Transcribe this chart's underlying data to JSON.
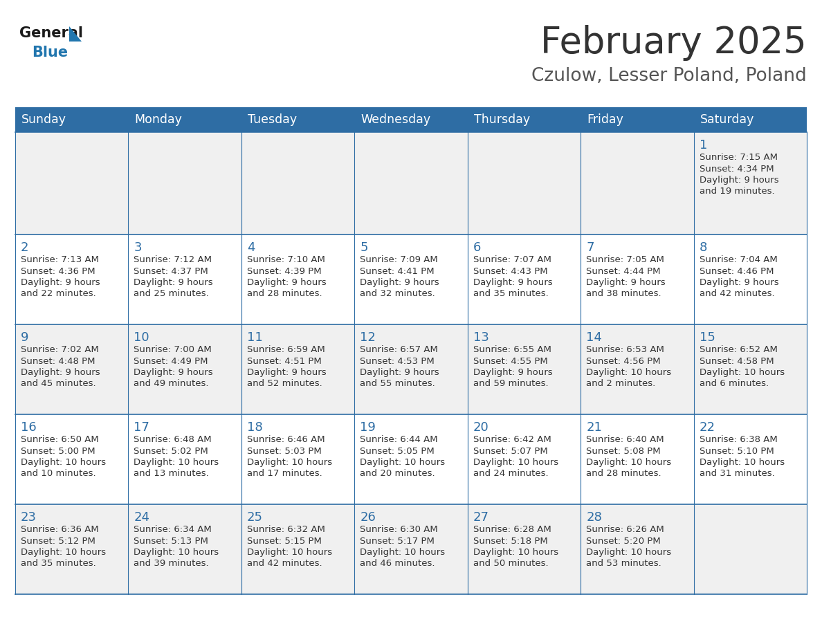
{
  "title": "February 2025",
  "subtitle": "Czulow, Lesser Poland, Poland",
  "days_of_week": [
    "Sunday",
    "Monday",
    "Tuesday",
    "Wednesday",
    "Thursday",
    "Friday",
    "Saturday"
  ],
  "header_bg": "#2E6DA4",
  "header_text": "#FFFFFF",
  "bg_color": "#FFFFFF",
  "row_alt_color": "#F0F0F0",
  "border_color": "#2E6DA4",
  "day_number_color": "#2E6DA4",
  "info_text_color": "#333333",
  "title_color": "#333333",
  "subtitle_color": "#555555",
  "calendar": [
    [
      null,
      null,
      null,
      null,
      null,
      null,
      {
        "day": 1,
        "sunrise": "7:15 AM",
        "sunset": "4:34 PM",
        "daylight": "9 hours",
        "daylight2": "and 19 minutes."
      }
    ],
    [
      {
        "day": 2,
        "sunrise": "7:13 AM",
        "sunset": "4:36 PM",
        "daylight": "9 hours",
        "daylight2": "and 22 minutes."
      },
      {
        "day": 3,
        "sunrise": "7:12 AM",
        "sunset": "4:37 PM",
        "daylight": "9 hours",
        "daylight2": "and 25 minutes."
      },
      {
        "day": 4,
        "sunrise": "7:10 AM",
        "sunset": "4:39 PM",
        "daylight": "9 hours",
        "daylight2": "and 28 minutes."
      },
      {
        "day": 5,
        "sunrise": "7:09 AM",
        "sunset": "4:41 PM",
        "daylight": "9 hours",
        "daylight2": "and 32 minutes."
      },
      {
        "day": 6,
        "sunrise": "7:07 AM",
        "sunset": "4:43 PM",
        "daylight": "9 hours",
        "daylight2": "and 35 minutes."
      },
      {
        "day": 7,
        "sunrise": "7:05 AM",
        "sunset": "4:44 PM",
        "daylight": "9 hours",
        "daylight2": "and 38 minutes."
      },
      {
        "day": 8,
        "sunrise": "7:04 AM",
        "sunset": "4:46 PM",
        "daylight": "9 hours",
        "daylight2": "and 42 minutes."
      }
    ],
    [
      {
        "day": 9,
        "sunrise": "7:02 AM",
        "sunset": "4:48 PM",
        "daylight": "9 hours",
        "daylight2": "and 45 minutes."
      },
      {
        "day": 10,
        "sunrise": "7:00 AM",
        "sunset": "4:49 PM",
        "daylight": "9 hours",
        "daylight2": "and 49 minutes."
      },
      {
        "day": 11,
        "sunrise": "6:59 AM",
        "sunset": "4:51 PM",
        "daylight": "9 hours",
        "daylight2": "and 52 minutes."
      },
      {
        "day": 12,
        "sunrise": "6:57 AM",
        "sunset": "4:53 PM",
        "daylight": "9 hours",
        "daylight2": "and 55 minutes."
      },
      {
        "day": 13,
        "sunrise": "6:55 AM",
        "sunset": "4:55 PM",
        "daylight": "9 hours",
        "daylight2": "and 59 minutes."
      },
      {
        "day": 14,
        "sunrise": "6:53 AM",
        "sunset": "4:56 PM",
        "daylight": "10 hours",
        "daylight2": "and 2 minutes."
      },
      {
        "day": 15,
        "sunrise": "6:52 AM",
        "sunset": "4:58 PM",
        "daylight": "10 hours",
        "daylight2": "and 6 minutes."
      }
    ],
    [
      {
        "day": 16,
        "sunrise": "6:50 AM",
        "sunset": "5:00 PM",
        "daylight": "10 hours",
        "daylight2": "and 10 minutes."
      },
      {
        "day": 17,
        "sunrise": "6:48 AM",
        "sunset": "5:02 PM",
        "daylight": "10 hours",
        "daylight2": "and 13 minutes."
      },
      {
        "day": 18,
        "sunrise": "6:46 AM",
        "sunset": "5:03 PM",
        "daylight": "10 hours",
        "daylight2": "and 17 minutes."
      },
      {
        "day": 19,
        "sunrise": "6:44 AM",
        "sunset": "5:05 PM",
        "daylight": "10 hours",
        "daylight2": "and 20 minutes."
      },
      {
        "day": 20,
        "sunrise": "6:42 AM",
        "sunset": "5:07 PM",
        "daylight": "10 hours",
        "daylight2": "and 24 minutes."
      },
      {
        "day": 21,
        "sunrise": "6:40 AM",
        "sunset": "5:08 PM",
        "daylight": "10 hours",
        "daylight2": "and 28 minutes."
      },
      {
        "day": 22,
        "sunrise": "6:38 AM",
        "sunset": "5:10 PM",
        "daylight": "10 hours",
        "daylight2": "and 31 minutes."
      }
    ],
    [
      {
        "day": 23,
        "sunrise": "6:36 AM",
        "sunset": "5:12 PM",
        "daylight": "10 hours",
        "daylight2": "and 35 minutes."
      },
      {
        "day": 24,
        "sunrise": "6:34 AM",
        "sunset": "5:13 PM",
        "daylight": "10 hours",
        "daylight2": "and 39 minutes."
      },
      {
        "day": 25,
        "sunrise": "6:32 AM",
        "sunset": "5:15 PM",
        "daylight": "10 hours",
        "daylight2": "and 42 minutes."
      },
      {
        "day": 26,
        "sunrise": "6:30 AM",
        "sunset": "5:17 PM",
        "daylight": "10 hours",
        "daylight2": "and 46 minutes."
      },
      {
        "day": 27,
        "sunrise": "6:28 AM",
        "sunset": "5:18 PM",
        "daylight": "10 hours",
        "daylight2": "and 50 minutes."
      },
      {
        "day": 28,
        "sunrise": "6:26 AM",
        "sunset": "5:20 PM",
        "daylight": "10 hours",
        "daylight2": "and 53 minutes."
      },
      null
    ]
  ]
}
